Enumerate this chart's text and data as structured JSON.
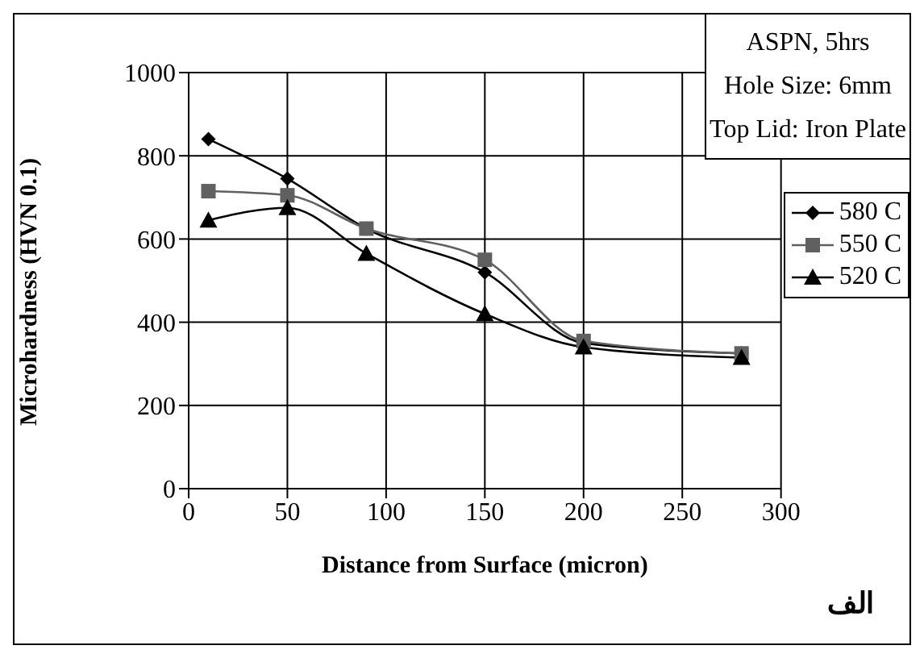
{
  "chart_data": {
    "type": "line",
    "xlabel": "Distance from Surface (micron)",
    "ylabel": "Microhardness (HVN 0.1)",
    "x": [
      10,
      50,
      90,
      150,
      200,
      280
    ],
    "series": [
      {
        "name": "580 C",
        "color": "#000000",
        "marker": "diamond",
        "values": [
          840,
          745,
          625,
          520,
          350,
          325
        ]
      },
      {
        "name": "550 C",
        "color": "#606060",
        "marker": "square",
        "values": [
          715,
          705,
          625,
          550,
          355,
          325
        ]
      },
      {
        "name": "520 C",
        "color": "#000000",
        "marker": "triangle",
        "values": [
          645,
          675,
          565,
          420,
          340,
          315
        ]
      }
    ],
    "xlim": [
      0,
      300
    ],
    "xticks": [
      0,
      50,
      100,
      150,
      200,
      250,
      300
    ],
    "ylim": [
      0,
      1000
    ],
    "yticks": [
      0,
      200,
      400,
      600,
      800,
      1000
    ],
    "grid": true,
    "legend": "right",
    "annotations": [
      "ASPN, 5hrs",
      "Hole Size: 6mm",
      "Top Lid: Iron Plate",
      "الف"
    ]
  }
}
